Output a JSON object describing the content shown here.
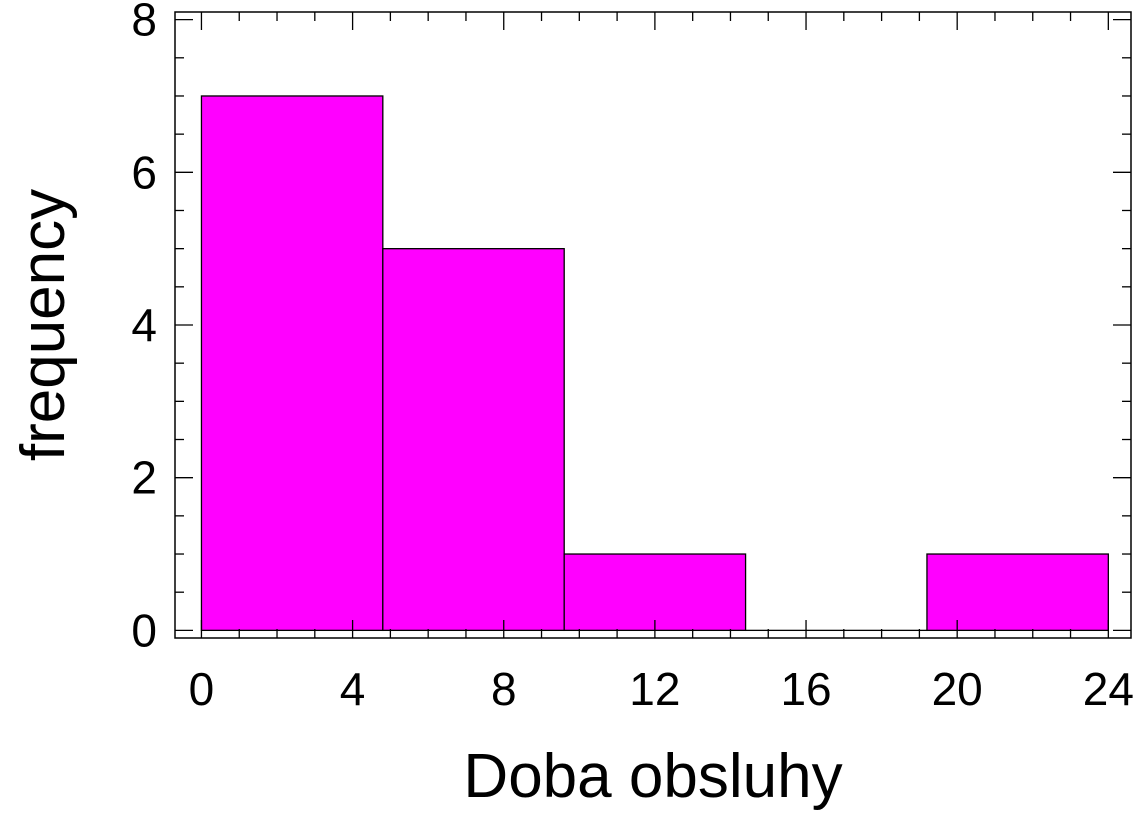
{
  "chart_data": {
    "type": "bar",
    "histogram": true,
    "title": "",
    "xlabel": "Doba obsluhy",
    "ylabel": "frequency",
    "bins": [
      {
        "x0": 0,
        "x1": 4.8,
        "value": 7
      },
      {
        "x0": 4.8,
        "x1": 9.6,
        "value": 5
      },
      {
        "x0": 9.6,
        "x1": 14.4,
        "value": 1
      },
      {
        "x0": 14.4,
        "x1": 19.2,
        "value": 0
      },
      {
        "x0": 19.2,
        "x1": 24,
        "value": 1
      }
    ],
    "xlim": [
      -0.7,
      24.6
    ],
    "ylim": [
      -0.1,
      8.1
    ],
    "xticks": [
      0,
      4,
      8,
      12,
      16,
      20,
      24
    ],
    "xtick_labels": [
      "0",
      "4",
      "8",
      "12",
      "16",
      "20",
      "24"
    ],
    "yticks": [
      0,
      2,
      4,
      6,
      8
    ],
    "ytick_labels": [
      "0",
      "2",
      "4",
      "6",
      "8"
    ],
    "bar_color": "#ff00ff",
    "grid": false
  }
}
